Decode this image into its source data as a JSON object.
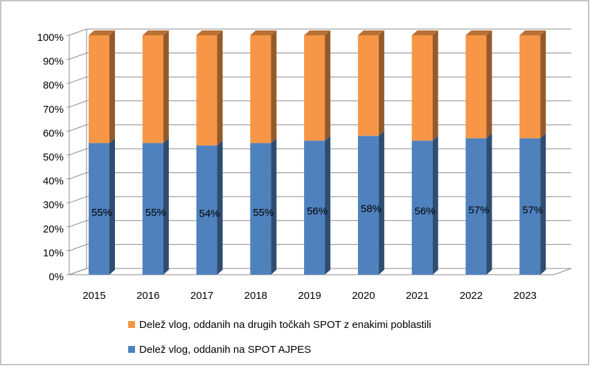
{
  "chart_data": {
    "type": "stacked_bar_3d",
    "categories": [
      "2015",
      "2016",
      "2017",
      "2018",
      "2019",
      "2020",
      "2021",
      "2022",
      "2023"
    ],
    "series": [
      {
        "name": "Delež vlog, oddanih na SPOT AJPES",
        "color": "#4f81bd",
        "values": [
          55,
          55,
          54,
          55,
          56,
          58,
          56,
          57,
          57
        ],
        "value_labels": [
          "55%",
          "55%",
          "54%",
          "55%",
          "56%",
          "58%",
          "56%",
          "57%",
          "57%"
        ]
      },
      {
        "name": "Delež vlog, oddanih na drugih točkah SPOT z enakimi poblastili",
        "color": "#f79646",
        "values": [
          45,
          45,
          46,
          45,
          44,
          42,
          44,
          43,
          43
        ]
      }
    ],
    "ylim": [
      0,
      100
    ],
    "yticks": [
      {
        "value": 0,
        "label": "0%"
      },
      {
        "value": 10,
        "label": "10%"
      },
      {
        "value": 20,
        "label": "20%"
      },
      {
        "value": 30,
        "label": "30%"
      },
      {
        "value": 40,
        "label": "40%"
      },
      {
        "value": 50,
        "label": "50%"
      },
      {
        "value": 60,
        "label": "60%"
      },
      {
        "value": 70,
        "label": "70%"
      },
      {
        "value": 80,
        "label": "80%"
      },
      {
        "value": 90,
        "label": "90%"
      },
      {
        "value": 100,
        "label": "100%"
      }
    ],
    "grid": true
  }
}
